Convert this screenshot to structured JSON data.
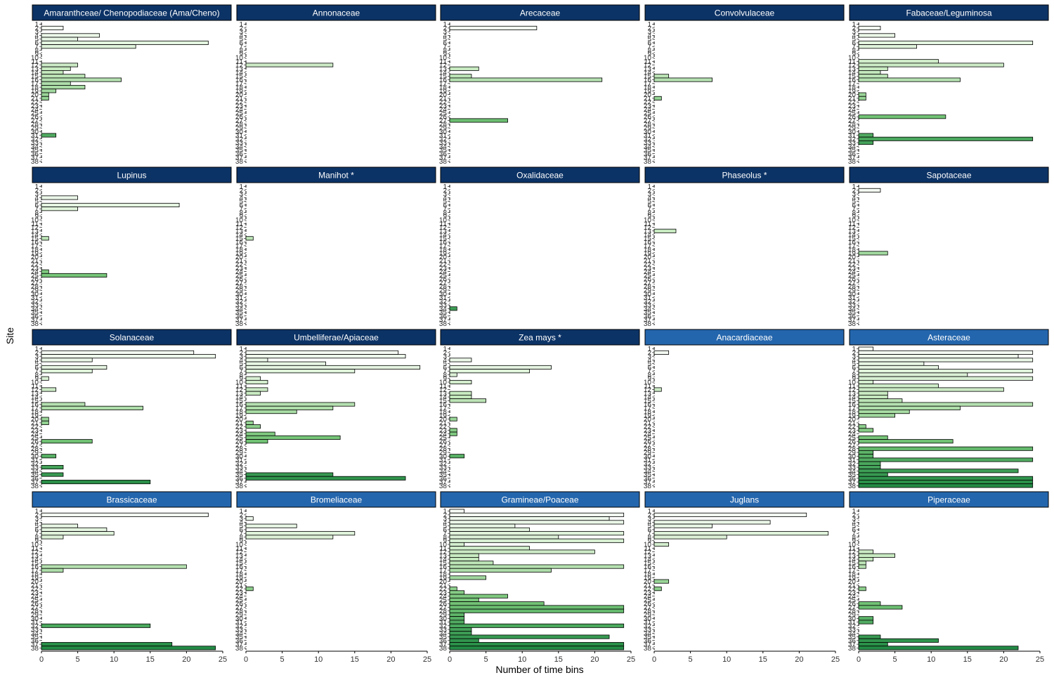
{
  "chart_data": {
    "type": "bar",
    "orientation": "horizontal",
    "layout": "faceted-grid",
    "xlabel": "Number of time bins",
    "ylabel": "Site",
    "xlim": [
      0,
      25
    ],
    "xticks": [
      0,
      5,
      10,
      15,
      20,
      25
    ],
    "sites": [
      "1",
      "2",
      "3",
      "4",
      "5",
      "6",
      "7",
      "8",
      "9",
      "10",
      "11",
      "12",
      "13",
      "14",
      "15",
      "16",
      "17",
      "18",
      "19",
      "20",
      "21",
      "22",
      "23",
      "24",
      "25",
      "26",
      "27",
      "28",
      "29",
      "30",
      "31",
      "32",
      "33",
      "34",
      "35",
      "36",
      "37",
      "38"
    ],
    "site_tick_labels": [
      "1",
      "2",
      "3",
      "4",
      "5",
      "6",
      "7",
      "8",
      "9",
      "10",
      "11",
      "12",
      "13",
      "14",
      "15",
      "16",
      "17",
      "18",
      "19",
      "20",
      "21",
      "22",
      "23",
      "24",
      "25",
      "26",
      "27",
      "28",
      "29",
      "30",
      "31",
      "32",
      "33",
      "34",
      "35",
      "36",
      "37",
      "38"
    ],
    "grid": false,
    "legend": "none",
    "colors": {
      "facet_header_dark": "#0c3366",
      "facet_header_light": "#2466ad",
      "bar_outline": "#000000",
      "site_gradient": [
        "#f7fcf5",
        "#c7e9c0",
        "#74c476",
        "#238b45"
      ]
    },
    "facets": [
      {
        "name": "Amaranthceae/ Chenopodiaceae (Ama/Cheno)",
        "header": "dark",
        "values": {
          "2": 3,
          "4": 8,
          "5": 5,
          "6": 23,
          "7": 13,
          "12": 5,
          "13": 4,
          "14": 3,
          "15": 6,
          "16": 11,
          "17": 4,
          "18": 6,
          "19": 2,
          "20": 1,
          "21": 1,
          "31": 2
        }
      },
      {
        "name": "Annonaceae",
        "header": "dark",
        "values": {
          "12": 12
        }
      },
      {
        "name": "Arecaceae",
        "header": "dark",
        "values": {
          "2": 12,
          "13": 4,
          "15": 3,
          "16": 21,
          "27": 8
        }
      },
      {
        "name": "Convolvulaceae",
        "header": "dark",
        "values": {
          "15": 2,
          "16": 8,
          "21": 1
        }
      },
      {
        "name": "Fabaceae/Leguminosa",
        "header": "dark",
        "values": {
          "2": 3,
          "4": 5,
          "6": 24,
          "7": 8,
          "11": 11,
          "12": 20,
          "13": 4,
          "14": 3,
          "15": 4,
          "16": 14,
          "20": 1,
          "21": 1,
          "26": 12,
          "31": 2,
          "32": 24,
          "33": 2
        }
      },
      {
        "name": "Lupinus",
        "header": "dark",
        "values": {
          "4": 5,
          "6": 19,
          "7": 5,
          "15": 1,
          "24": 1,
          "25": 9
        }
      },
      {
        "name": "Manihot *",
        "header": "dark",
        "values": {
          "15": 1
        }
      },
      {
        "name": "Oxalidaceae",
        "header": "dark",
        "values": {
          "34": 1
        }
      },
      {
        "name": "Phaseolus *",
        "header": "dark",
        "values": {
          "13": 3
        }
      },
      {
        "name": "Sapotaceae",
        "header": "dark",
        "values": {
          "2": 3,
          "19": 4
        }
      },
      {
        "name": "Solanaceae",
        "header": "dark",
        "values": {
          "2": 21,
          "3": 24,
          "4": 7,
          "6": 9,
          "7": 7,
          "9": 1,
          "12": 2,
          "16": 6,
          "17": 14,
          "20": 1,
          "21": 1,
          "26": 7,
          "30": 2,
          "33": 3,
          "35": 3,
          "37": 15
        }
      },
      {
        "name": "Umbelliferae/Apiaceae",
        "header": "dark",
        "values": {
          "2": 21,
          "3": 22,
          "4": 3,
          "5": 11,
          "6": 24,
          "7": 15,
          "9": 2,
          "10": 3,
          "12": 3,
          "13": 2,
          "16": 15,
          "17": 12,
          "18": 7,
          "21": 1,
          "22": 2,
          "24": 4,
          "25": 13,
          "26": 3,
          "35": 12,
          "36": 22
        }
      },
      {
        "name": "Zea mays *",
        "header": "dark",
        "values": {
          "4": 3,
          "6": 14,
          "7": 11,
          "8": 1,
          "10": 3,
          "13": 3,
          "14": 3,
          "15": 5,
          "20": 1,
          "23": 1,
          "24": 1,
          "30": 2
        }
      },
      {
        "name": "Anacardiaceae",
        "header": "light",
        "values": {
          "2": 2,
          "12": 1
        }
      },
      {
        "name": "Asteraceae",
        "header": "light",
        "values": {
          "1": 2,
          "2": 24,
          "3": 22,
          "4": 24,
          "5": 9,
          "6": 11,
          "7": 24,
          "8": 15,
          "9": 24,
          "10": 2,
          "11": 11,
          "12": 20,
          "13": 4,
          "14": 4,
          "15": 6,
          "16": 24,
          "17": 14,
          "18": 7,
          "19": 5,
          "22": 1,
          "23": 2,
          "25": 4,
          "26": 13,
          "28": 24,
          "29": 2,
          "30": 2,
          "31": 24,
          "32": 3,
          "33": 3,
          "34": 22,
          "35": 4,
          "36": 24,
          "37": 24,
          "38": 24
        }
      },
      {
        "name": "Brassicaceae",
        "header": "light",
        "values": {
          "2": 23,
          "5": 5,
          "6": 9,
          "7": 10,
          "8": 3,
          "16": 20,
          "17": 3,
          "32": 15,
          "37": 18,
          "38": 24
        }
      },
      {
        "name": "Bromeliaceae",
        "header": "light",
        "values": {
          "3": 1,
          "5": 7,
          "7": 15,
          "8": 12,
          "22": 1
        }
      },
      {
        "name": "Gramineae/Poaceae",
        "header": "light",
        "values": {
          "1": 2,
          "2": 24,
          "3": 22,
          "4": 24,
          "5": 9,
          "6": 11,
          "7": 24,
          "8": 15,
          "9": 24,
          "10": 2,
          "11": 11,
          "12": 20,
          "13": 4,
          "14": 4,
          "15": 6,
          "16": 24,
          "17": 14,
          "19": 5,
          "22": 1,
          "23": 2,
          "24": 8,
          "25": 4,
          "26": 13,
          "27": 24,
          "28": 24,
          "29": 2,
          "30": 2,
          "31": 2,
          "32": 24,
          "33": 3,
          "34": 3,
          "35": 22,
          "36": 4,
          "37": 24,
          "38": 24
        }
      },
      {
        "name": "Juglans",
        "header": "light",
        "values": {
          "2": 21,
          "4": 16,
          "5": 8,
          "7": 24,
          "8": 10,
          "10": 2,
          "20": 2,
          "22": 1
        }
      },
      {
        "name": "Piperaceae",
        "header": "light",
        "values": {
          "12": 2,
          "13": 5,
          "14": 2,
          "15": 1,
          "16": 1,
          "22": 1,
          "26": 3,
          "27": 6,
          "30": 2,
          "31": 2,
          "35": 3,
          "36": 11,
          "37": 4,
          "38": 22
        }
      }
    ]
  }
}
